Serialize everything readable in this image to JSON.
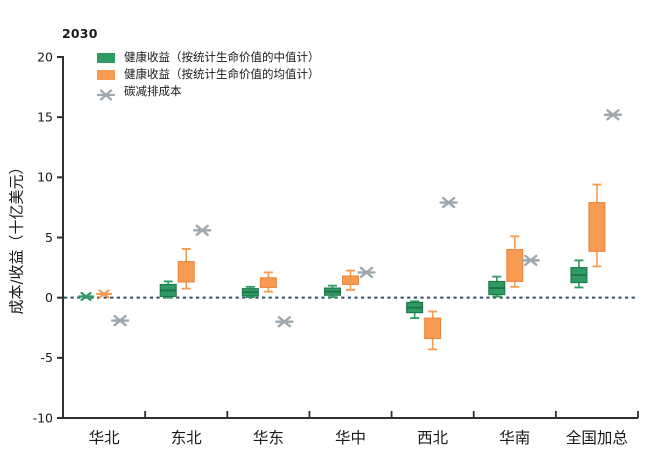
{
  "chart_data": {
    "type": "box",
    "title": "2030",
    "ylabel": "成本/收益（十亿美元）",
    "ylim": [
      -10,
      20
    ],
    "yticks": [
      20,
      15,
      10,
      5,
      0,
      -5,
      -10
    ],
    "zero_line": 0,
    "grid": false,
    "legend_position": "top-left-inside",
    "categories": [
      "华北",
      "东北",
      "华东",
      "华中",
      "西北",
      "华南",
      "全国加总"
    ],
    "legend": [
      {
        "id": "health_benefit_median_vsl",
        "label": "健康收益（按统计生命价值的中值计）",
        "color": "#2E9B63",
        "marker": "box"
      },
      {
        "id": "health_benefit_mean_vsl",
        "label": "健康收益（按统计生命价值的均值计）",
        "color": "#F79A52",
        "marker": "box"
      },
      {
        "id": "carbon_abatement_cost",
        "label": "碳减排成本",
        "color": "#9FA8AE",
        "marker": "x"
      }
    ],
    "groups": [
      {
        "category": "华北",
        "health_benefit_median_vsl": {
          "type": "marker",
          "value": 0.1
        },
        "health_benefit_mean_vsl": {
          "type": "marker",
          "value": 0.3
        },
        "carbon_abatement_cost": -1.9
      },
      {
        "category": "东北",
        "health_benefit_median_vsl": {
          "type": "box",
          "box": [
            0.1,
            1.1
          ],
          "whiskers": [
            0.0,
            1.35
          ]
        },
        "health_benefit_mean_vsl": {
          "type": "box",
          "box": [
            1.3,
            3.0
          ],
          "whiskers": [
            0.75,
            4.05
          ]
        },
        "carbon_abatement_cost": 5.6
      },
      {
        "category": "华东",
        "health_benefit_median_vsl": {
          "type": "box",
          "box": [
            0.15,
            0.75
          ],
          "whiskers": [
            0.05,
            0.9
          ]
        },
        "health_benefit_mean_vsl": {
          "type": "box",
          "box": [
            0.85,
            1.65
          ],
          "whiskers": [
            0.5,
            2.1
          ]
        },
        "carbon_abatement_cost": -2.0
      },
      {
        "category": "华中",
        "health_benefit_median_vsl": {
          "type": "box",
          "box": [
            0.2,
            0.8
          ],
          "whiskers": [
            0.05,
            1.0
          ]
        },
        "health_benefit_mean_vsl": {
          "type": "box",
          "box": [
            1.1,
            1.8
          ],
          "whiskers": [
            0.65,
            2.25
          ]
        },
        "carbon_abatement_cost": 2.1
      },
      {
        "category": "西北",
        "health_benefit_median_vsl": {
          "type": "box",
          "box": [
            -1.25,
            -0.4
          ],
          "whiskers": [
            -1.7,
            -0.3
          ]
        },
        "health_benefit_mean_vsl": {
          "type": "box",
          "box": [
            -3.4,
            -1.7
          ],
          "whiskers": [
            -4.3,
            -1.15
          ]
        },
        "carbon_abatement_cost": 7.9
      },
      {
        "category": "华南",
        "health_benefit_median_vsl": {
          "type": "box",
          "box": [
            0.25,
            1.35
          ],
          "whiskers": [
            0.1,
            1.75
          ]
        },
        "health_benefit_mean_vsl": {
          "type": "box",
          "box": [
            1.35,
            4.0
          ],
          "whiskers": [
            0.9,
            5.1
          ]
        },
        "carbon_abatement_cost": 3.1
      },
      {
        "category": "全国加总",
        "health_benefit_median_vsl": {
          "type": "box",
          "box": [
            1.25,
            2.5
          ],
          "whiskers": [
            0.85,
            3.1
          ]
        },
        "health_benefit_mean_vsl": {
          "type": "box",
          "box": [
            3.85,
            7.9
          ],
          "whiskers": [
            2.6,
            9.4
          ]
        },
        "carbon_abatement_cost": 15.2
      }
    ],
    "colors": {
      "median_benefit": "#2E9B63",
      "median_benefit_dark": "#1C7348",
      "mean_benefit": "#F79A52",
      "mean_benefit_dark": "#E8843C",
      "cost_marker": "#9FA8AE",
      "zero_line": "#31505F",
      "axis": "#2F2F2F",
      "text": "#1A1A1A"
    }
  }
}
